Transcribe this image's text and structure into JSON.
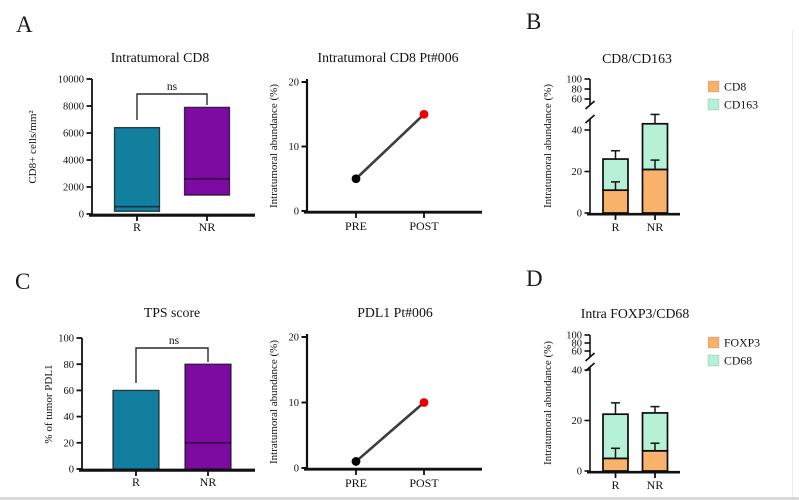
{
  "figure": {
    "panels": {
      "A": {
        "label": "A"
      },
      "B": {
        "label": "B"
      },
      "C": {
        "label": "C"
      },
      "D": {
        "label": "D"
      }
    }
  },
  "colors": {
    "responder_teal": "#137F9E",
    "nonresponder_purple": "#7D0BA2",
    "cd8_orange": "#F9B26C",
    "cd163_mint": "#B5F0D7",
    "pre_black": "#000000",
    "post_red": "#EC0000",
    "line_gray": "#3D3D3D",
    "axis_black": "#111111"
  },
  "chart_data": [
    {
      "id": "A-box",
      "panel": "A",
      "type": "box",
      "title": "Intratumoral CD8",
      "ylabel": "CD8+ cells/mm²",
      "ylim": [
        0,
        10000
      ],
      "yticks": [
        0,
        2000,
        4000,
        6000,
        8000,
        10000
      ],
      "categories": [
        "R",
        "NR"
      ],
      "boxes": [
        {
          "category": "R",
          "min": 200,
          "max": 6400,
          "median": 550,
          "color": "responder_teal"
        },
        {
          "category": "NR",
          "min": 1400,
          "max": 7900,
          "median": 2600,
          "color": "nonresponder_purple"
        }
      ],
      "significance": "ns",
      "grid": false
    },
    {
      "id": "A-line",
      "panel": "A",
      "type": "line",
      "title": "Intratumoral CD8 Pt#006",
      "ylabel": "Intratumoral abundance (%)",
      "ylim": [
        0,
        20
      ],
      "yticks": [
        0,
        10,
        20
      ],
      "x": [
        "PRE",
        "POST"
      ],
      "values": [
        5,
        15
      ],
      "point_colors": [
        "pre_black",
        "post_red"
      ],
      "line_color": "line_gray",
      "grid": false
    },
    {
      "id": "B-bar",
      "panel": "B",
      "type": "stacked_bar",
      "title": "CD8/CD163",
      "ylabel": "Intratumoral abundance (%)",
      "categories": [
        "R",
        "NR"
      ],
      "yticks_lower": [
        0,
        20,
        40
      ],
      "yticks_upper": [
        60,
        80,
        100
      ],
      "axis_break_between": [
        45,
        60
      ],
      "series": [
        {
          "name": "CD8",
          "color": "cd8_orange",
          "values": [
            11,
            21
          ],
          "error_top": [
            15,
            25.5
          ]
        },
        {
          "name": "CD163",
          "color": "cd163_mint",
          "stack_top": [
            26,
            43
          ],
          "error_top": [
            30,
            47.5
          ]
        }
      ],
      "legend": [
        "CD8",
        "CD163"
      ],
      "legend_position": "right",
      "grid": false
    },
    {
      "id": "C-box",
      "panel": "C",
      "type": "box",
      "title": "TPS score",
      "ylabel": "% of tumor PDL1",
      "ylim": [
        0,
        100
      ],
      "yticks": [
        0,
        20,
        40,
        60,
        80,
        100
      ],
      "categories": [
        "R",
        "NR"
      ],
      "boxes": [
        {
          "category": "R",
          "min": 0,
          "max": 60,
          "median": null,
          "color": "responder_teal"
        },
        {
          "category": "NR",
          "min": 0,
          "max": 80,
          "median": 20,
          "color": "nonresponder_purple"
        }
      ],
      "significance": "ns",
      "grid": false
    },
    {
      "id": "C-line",
      "panel": "C",
      "type": "line",
      "title": "PDL1 Pt#006",
      "ylabel": "Intratumoral abundance (%)",
      "ylim": [
        0,
        20
      ],
      "yticks": [
        0,
        10,
        20
      ],
      "x": [
        "PRE",
        "POST"
      ],
      "values": [
        1,
        10
      ],
      "point_colors": [
        "pre_black",
        "post_red"
      ],
      "line_color": "line_gray",
      "grid": false
    },
    {
      "id": "D-bar",
      "panel": "D",
      "type": "stacked_bar",
      "title": "Intra FOXP3/CD68",
      "ylabel": "Intratumoral abundance (%)",
      "categories": [
        "R",
        "NR"
      ],
      "yticks_lower": [
        0,
        20,
        40
      ],
      "yticks_upper": [
        60,
        80,
        100
      ],
      "axis_break_between": [
        42,
        60
      ],
      "series": [
        {
          "name": "FOXP3",
          "color": "cd8_orange",
          "values": [
            5,
            8
          ],
          "error_top": [
            9,
            11
          ]
        },
        {
          "name": "CD68",
          "color": "cd163_mint",
          "stack_top": [
            22.5,
            23
          ],
          "error_top": [
            27,
            25.5
          ]
        }
      ],
      "legend": [
        "FOXP3",
        "CD68"
      ],
      "legend_position": "right",
      "grid": false
    }
  ]
}
